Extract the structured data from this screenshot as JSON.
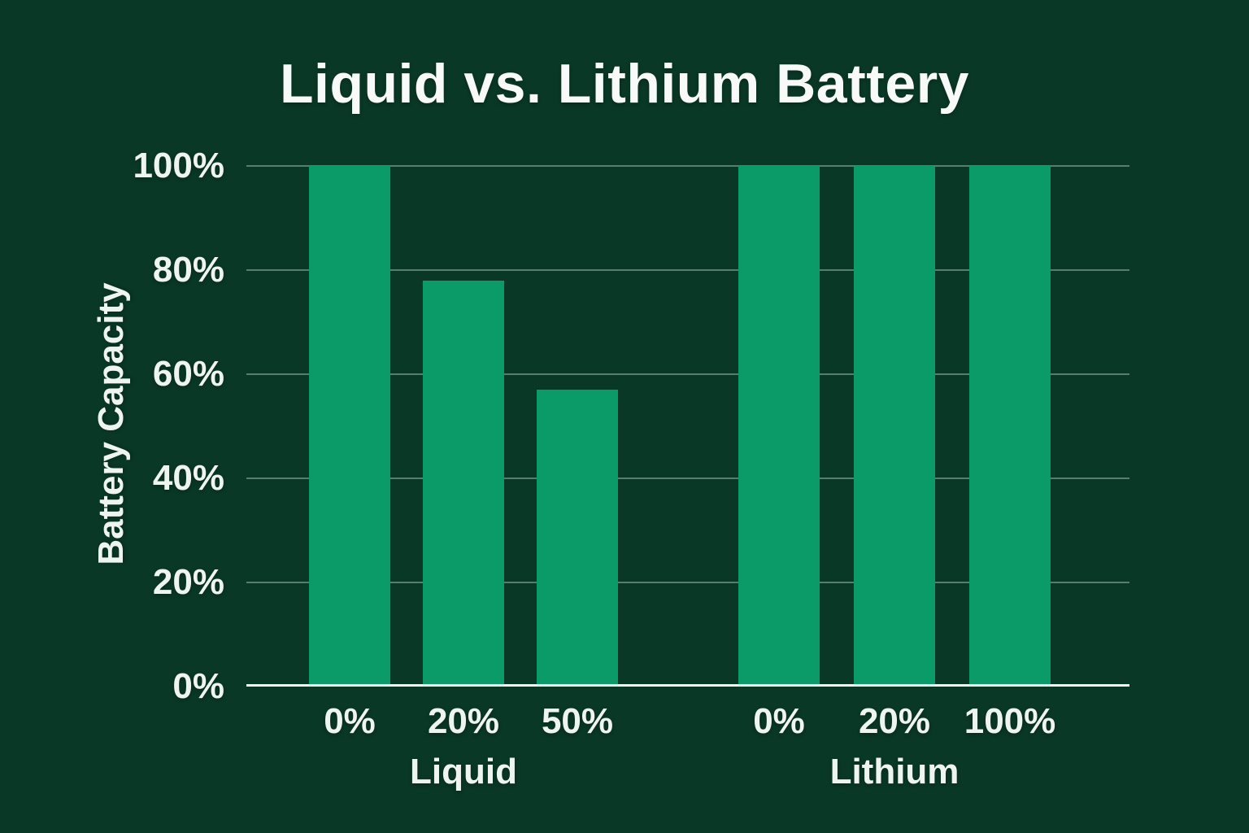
{
  "page": {
    "background": "#0a3826"
  },
  "chart_data": {
    "type": "bar",
    "title": "Liquid vs. Lithium Battery",
    "ylabel": "Battery Capacity",
    "xlabel": "",
    "ylim": [
      0,
      100
    ],
    "yticks": [
      "0%",
      "20%",
      "40%",
      "60%",
      "80%",
      "100%"
    ],
    "grid": true,
    "legend": false,
    "bar_color": "#0a9b69",
    "gridline_color": "#557f6a",
    "axis_color": "#f2f7f4",
    "text_color": "#eef4f0",
    "groups": [
      {
        "label": "Liquid",
        "categories": [
          "0%",
          "20%",
          "50%"
        ],
        "values": [
          100,
          78,
          57
        ]
      },
      {
        "label": "Lithium",
        "categories": [
          "0%",
          "20%",
          "100%"
        ],
        "values": [
          100,
          100,
          100
        ]
      }
    ]
  }
}
